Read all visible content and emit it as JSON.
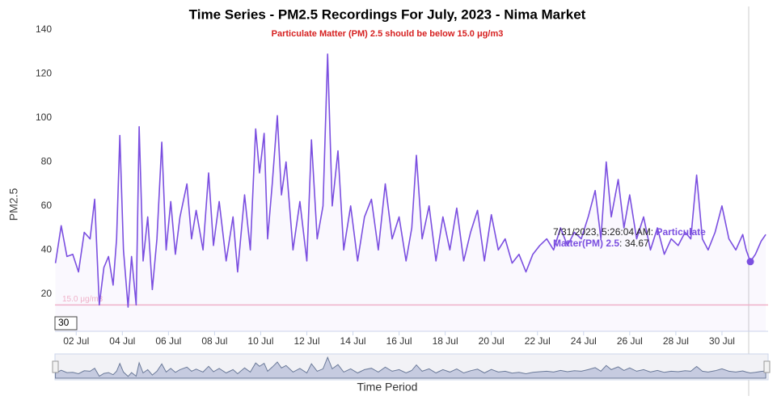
{
  "chart_data": {
    "type": "line",
    "title": "Time Series - PM2.5 Recordings For July, 2023 - Nima Market",
    "subtitle": "Particulate Matter (PM) 2.5 should be below 15.0 μg/m3",
    "y_label": "PM2.5",
    "x_label": "Time Period",
    "xlim": [
      1.08,
      32
    ],
    "ylim": [
      3,
      140
    ],
    "yticks": [
      20,
      40,
      60,
      80,
      100,
      120,
      140
    ],
    "xticks": [
      {
        "value": 2,
        "label": "02 Jul"
      },
      {
        "value": 4,
        "label": "04 Jul"
      },
      {
        "value": 6,
        "label": "06 Jul"
      },
      {
        "value": 8,
        "label": "08 Jul"
      },
      {
        "value": 10,
        "label": "10 Jul"
      },
      {
        "value": 12,
        "label": "12 Jul"
      },
      {
        "value": 14,
        "label": "14 Jul"
      },
      {
        "value": 16,
        "label": "16 Jul"
      },
      {
        "value": 18,
        "label": "18 Jul"
      },
      {
        "value": 20,
        "label": "20 Jul"
      },
      {
        "value": 22,
        "label": "22 Jul"
      },
      {
        "value": 24,
        "label": "24 Jul"
      },
      {
        "value": 26,
        "label": "26 Jul"
      },
      {
        "value": 28,
        "label": "28 Jul"
      },
      {
        "value": 30,
        "label": "30 Jul"
      }
    ],
    "plot_line": {
      "value": 15,
      "label": "15.0 μg/m3",
      "color": "#f4b6c8"
    },
    "range_input": "30",
    "x": [
      1.1,
      1.35,
      1.6,
      1.85,
      2.1,
      2.35,
      2.6,
      2.8,
      3.0,
      3.2,
      3.4,
      3.6,
      3.75,
      3.89,
      4.05,
      4.25,
      4.4,
      4.6,
      4.73,
      4.9,
      5.1,
      5.3,
      5.5,
      5.71,
      5.9,
      6.1,
      6.3,
      6.5,
      6.8,
      7.0,
      7.2,
      7.5,
      7.74,
      7.95,
      8.2,
      8.5,
      8.8,
      9.0,
      9.3,
      9.55,
      9.78,
      9.95,
      10.15,
      10.3,
      10.5,
      10.72,
      10.9,
      11.1,
      11.4,
      11.7,
      12.0,
      12.2,
      12.45,
      12.7,
      12.9,
      13.1,
      13.35,
      13.6,
      13.9,
      14.2,
      14.5,
      14.8,
      15.1,
      15.4,
      15.7,
      16.0,
      16.3,
      16.55,
      16.75,
      17.0,
      17.3,
      17.6,
      17.9,
      18.2,
      18.5,
      18.8,
      19.1,
      19.4,
      19.7,
      20.0,
      20.3,
      20.6,
      20.9,
      21.2,
      21.5,
      21.8,
      22.1,
      22.4,
      22.7,
      23.0,
      23.3,
      23.6,
      23.9,
      24.2,
      24.5,
      24.75,
      24.98,
      25.2,
      25.5,
      25.75,
      26.0,
      26.3,
      26.6,
      26.9,
      27.2,
      27.5,
      27.8,
      28.1,
      28.4,
      28.65,
      28.9,
      29.15,
      29.4,
      29.7,
      30.0,
      30.3,
      30.6,
      30.9,
      31.05,
      31.23,
      31.45,
      31.7,
      31.9
    ],
    "series": [
      {
        "name": "Particulate Matter(PM) 2.5",
        "color": "#7b4fe0",
        "values": [
          34,
          51,
          37,
          38,
          30,
          48,
          45,
          63,
          15,
          32,
          37,
          24,
          45,
          92,
          40,
          14,
          37,
          15,
          96,
          35,
          55,
          22,
          45,
          89,
          40,
          62,
          38,
          55,
          70,
          45,
          58,
          40,
          75,
          42,
          62,
          35,
          55,
          30,
          65,
          40,
          95,
          75,
          93,
          45,
          70,
          101,
          65,
          80,
          40,
          62,
          35,
          90,
          45,
          60,
          129,
          60,
          85,
          40,
          60,
          35,
          55,
          63,
          40,
          70,
          45,
          55,
          35,
          50,
          83,
          45,
          60,
          35,
          55,
          40,
          59,
          35,
          48,
          58,
          35,
          56,
          40,
          45,
          34,
          38,
          30,
          38,
          42,
          45,
          40,
          50,
          42,
          48,
          45,
          55,
          67,
          45,
          80,
          55,
          72,
          50,
          65,
          45,
          55,
          40,
          50,
          38,
          45,
          42,
          48,
          45,
          74,
          45,
          40,
          48,
          60,
          45,
          40,
          47,
          40,
          34.67,
          38,
          44,
          47
        ]
      }
    ],
    "tooltip": {
      "time": "7/31/2023, 5:26:04 AM",
      "point": 119
    }
  }
}
